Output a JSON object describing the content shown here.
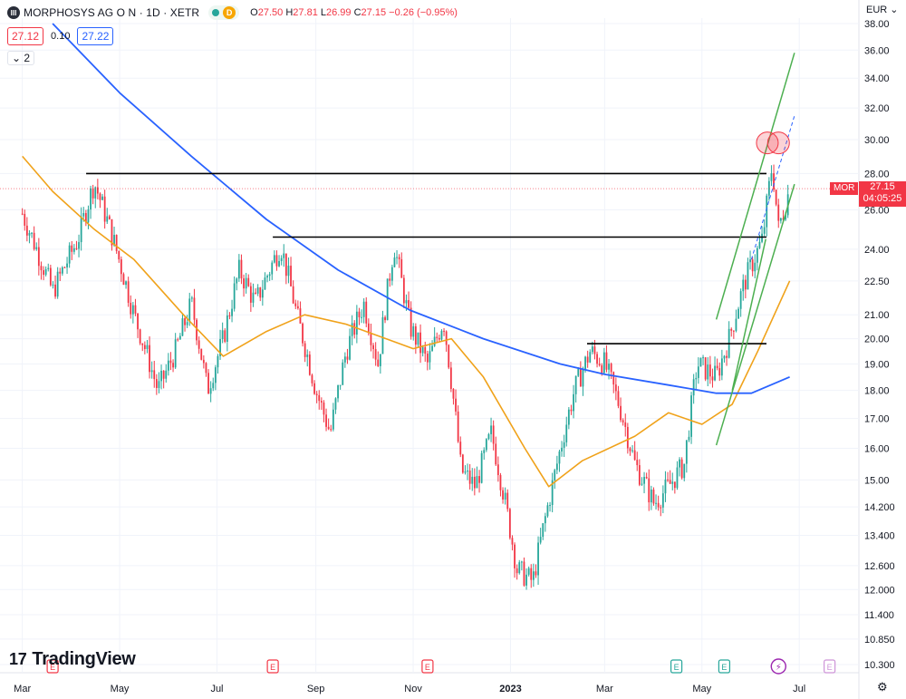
{
  "header": {
    "symbol_title": "MORPHOSYS AG O N · 1D · XETR",
    "logo_letter": "III",
    "delayed_badge": "D",
    "open_label": "O",
    "open": "27.50",
    "high_label": "H",
    "high": "27.81",
    "low_label": "L",
    "low": "26.99",
    "close_label": "C",
    "close": "27.15",
    "change": "−0.26 (−0.95%)",
    "bid": "27.12",
    "spread": "0.10",
    "ask": "27.22",
    "indicators_count": "2"
  },
  "axis": {
    "currency": "EUR"
  },
  "price_tag": {
    "symbol": "MOR",
    "price": "27.15",
    "countdown": "04:05:25"
  },
  "brand": {
    "mark": "17",
    "name": "TradingView"
  },
  "colors": {
    "up": "#26a69a",
    "down": "#f23645",
    "ma_fast": "#f0a21a",
    "ma_slow": "#2962ff",
    "channel": "#4caf50",
    "level": "#000000",
    "grid": "#f0f3fa"
  },
  "chart_data": {
    "type": "candlestick",
    "scale": "log",
    "y_ticks": [
      "38.00",
      "36.00",
      "34.00",
      "32.00",
      "30.00",
      "28.00",
      "26.00",
      "24.00",
      "22.50",
      "21.00",
      "20.00",
      "19.00",
      "18.00",
      "17.00",
      "16.00",
      "15.00",
      "14.200",
      "13.400",
      "12.600",
      "12.000",
      "11.400",
      "10.850",
      "10.300"
    ],
    "x_ticks": [
      "Mar",
      "May",
      "Jul",
      "Sep",
      "Nov",
      "2023",
      "Mar",
      "May",
      "Jul"
    ],
    "x_range": [
      "2022-03",
      "2023-07"
    ],
    "y_range": [
      10.3,
      38.0
    ],
    "close_path": [
      {
        "t": "2022-03-01",
        "v": 25.8
      },
      {
        "t": "2022-03-10",
        "v": 24.0
      },
      {
        "t": "2022-03-20",
        "v": 22.0
      },
      {
        "t": "2022-04-05",
        "v": 24.5
      },
      {
        "t": "2022-04-15",
        "v": 27.5
      },
      {
        "t": "2022-04-25",
        "v": 25.0
      },
      {
        "t": "2022-05-10",
        "v": 21.0
      },
      {
        "t": "2022-05-25",
        "v": 18.0
      },
      {
        "t": "2022-06-05",
        "v": 19.5
      },
      {
        "t": "2022-06-15",
        "v": 21.5
      },
      {
        "t": "2022-06-25",
        "v": 18.0
      },
      {
        "t": "2022-07-05",
        "v": 20.0
      },
      {
        "t": "2022-07-15",
        "v": 23.0
      },
      {
        "t": "2022-07-25",
        "v": 21.5
      },
      {
        "t": "2022-08-10",
        "v": 24.2
      },
      {
        "t": "2022-08-20",
        "v": 21.0
      },
      {
        "t": "2022-09-01",
        "v": 18.0
      },
      {
        "t": "2022-09-10",
        "v": 16.5
      },
      {
        "t": "2022-09-20",
        "v": 19.5
      },
      {
        "t": "2022-10-01",
        "v": 21.5
      },
      {
        "t": "2022-10-10",
        "v": 19.0
      },
      {
        "t": "2022-10-20",
        "v": 24.2
      },
      {
        "t": "2022-10-30",
        "v": 20.5
      },
      {
        "t": "2022-11-10",
        "v": 19.0
      },
      {
        "t": "2022-11-20",
        "v": 20.8
      },
      {
        "t": "2022-12-01",
        "v": 15.3
      },
      {
        "t": "2022-12-10",
        "v": 14.8
      },
      {
        "t": "2022-12-20",
        "v": 16.5
      },
      {
        "t": "2022-12-28",
        "v": 14.5
      },
      {
        "t": "2023-01-05",
        "v": 12.5
      },
      {
        "t": "2023-01-15",
        "v": 12.2
      },
      {
        "t": "2023-01-28",
        "v": 15.0
      },
      {
        "t": "2023-02-10",
        "v": 18.0
      },
      {
        "t": "2023-02-20",
        "v": 19.5
      },
      {
        "t": "2023-03-01",
        "v": 19.0
      },
      {
        "t": "2023-03-10",
        "v": 17.5
      },
      {
        "t": "2023-03-20",
        "v": 15.5
      },
      {
        "t": "2023-04-01",
        "v": 14.3
      },
      {
        "t": "2023-04-10",
        "v": 14.8
      },
      {
        "t": "2023-04-20",
        "v": 15.5
      },
      {
        "t": "2023-04-28",
        "v": 19.0
      },
      {
        "t": "2023-05-10",
        "v": 18.5
      },
      {
        "t": "2023-05-18",
        "v": 20.0
      },
      {
        "t": "2023-05-28",
        "v": 22.5
      },
      {
        "t": "2023-06-08",
        "v": 24.5
      },
      {
        "t": "2023-06-14",
        "v": 28.5
      },
      {
        "t": "2023-06-18",
        "v": 25.0
      },
      {
        "t": "2023-06-25",
        "v": 27.15
      }
    ],
    "ma_fast": [
      {
        "t": "2022-03-01",
        "v": 29.0
      },
      {
        "t": "2022-03-20",
        "v": 27.0
      },
      {
        "t": "2022-04-15",
        "v": 25.0
      },
      {
        "t": "2022-05-10",
        "v": 23.5
      },
      {
        "t": "2022-06-10",
        "v": 21.0
      },
      {
        "t": "2022-07-05",
        "v": 19.3
      },
      {
        "t": "2022-08-01",
        "v": 20.3
      },
      {
        "t": "2022-08-25",
        "v": 21.0
      },
      {
        "t": "2022-09-20",
        "v": 20.6
      },
      {
        "t": "2022-10-15",
        "v": 20.0
      },
      {
        "t": "2022-11-01",
        "v": 19.6
      },
      {
        "t": "2022-11-25",
        "v": 20.0
      },
      {
        "t": "2022-12-15",
        "v": 18.5
      },
      {
        "t": "2023-01-10",
        "v": 16.0
      },
      {
        "t": "2023-01-25",
        "v": 14.8
      },
      {
        "t": "2023-02-15",
        "v": 15.6
      },
      {
        "t": "2023-03-20",
        "v": 16.4
      },
      {
        "t": "2023-04-10",
        "v": 17.2
      },
      {
        "t": "2023-05-01",
        "v": 16.8
      },
      {
        "t": "2023-05-20",
        "v": 17.5
      },
      {
        "t": "2023-06-05",
        "v": 19.5
      },
      {
        "t": "2023-06-25",
        "v": 22.5
      }
    ],
    "ma_slow": [
      {
        "t": "2022-03-20",
        "v": 38.0
      },
      {
        "t": "2022-05-01",
        "v": 33.0
      },
      {
        "t": "2022-06-15",
        "v": 29.0
      },
      {
        "t": "2022-08-01",
        "v": 25.5
      },
      {
        "t": "2022-09-15",
        "v": 23.0
      },
      {
        "t": "2022-10-30",
        "v": 21.2
      },
      {
        "t": "2022-12-15",
        "v": 20.0
      },
      {
        "t": "2023-02-01",
        "v": 19.0
      },
      {
        "t": "2023-03-01",
        "v": 18.6
      },
      {
        "t": "2023-04-10",
        "v": 18.2
      },
      {
        "t": "2023-05-10",
        "v": 17.9
      },
      {
        "t": "2023-06-01",
        "v": 17.9
      },
      {
        "t": "2023-06-25",
        "v": 18.5
      }
    ],
    "horizontal_levels": [
      {
        "from": "2022-04-10",
        "to": "2023-07-01",
        "v": 28.0
      },
      {
        "from": "2022-08-05",
        "to": "2023-07-01",
        "v": 24.6
      },
      {
        "from": "2023-02-18",
        "to": "2023-07-01",
        "v": 19.8
      }
    ],
    "channel_lines": [
      {
        "from": {
          "t": "2023-05-10",
          "v": 20.8
        },
        "to": {
          "t": "2023-06-28",
          "v": 35.8
        }
      },
      {
        "from": {
          "t": "2023-05-10",
          "v": 16.1
        },
        "to": {
          "t": "2023-06-28",
          "v": 27.4
        }
      },
      {
        "from": {
          "t": "2023-05-20",
          "v": 18.0
        },
        "to": {
          "t": "2023-06-10",
          "v": 24.5
        }
      }
    ],
    "trend_dashed": {
      "from": {
        "t": "2023-06-01",
        "v": 23.5
      },
      "to": {
        "t": "2023-06-28",
        "v": 31.5
      }
    },
    "highlight_circles": [
      {
        "t": "2023-06-11",
        "v": 29.8
      },
      {
        "t": "2023-06-18",
        "v": 29.8
      }
    ],
    "event_markers": [
      {
        "t": "2022-03-20",
        "label": "E",
        "color": "#f23645"
      },
      {
        "t": "2022-08-05",
        "label": "E",
        "color": "#f23645"
      },
      {
        "t": "2022-11-10",
        "label": "E",
        "color": "#f23645"
      },
      {
        "t": "2023-04-15",
        "label": "E",
        "color": "#26a69a"
      },
      {
        "t": "2023-05-15",
        "label": "E",
        "color": "#26a69a"
      },
      {
        "t": "2023-06-18",
        "label": "⚡",
        "color": "#9c27b0"
      },
      {
        "t": "2023-07-20",
        "label": "E",
        "color": "#ce93d8"
      }
    ]
  }
}
